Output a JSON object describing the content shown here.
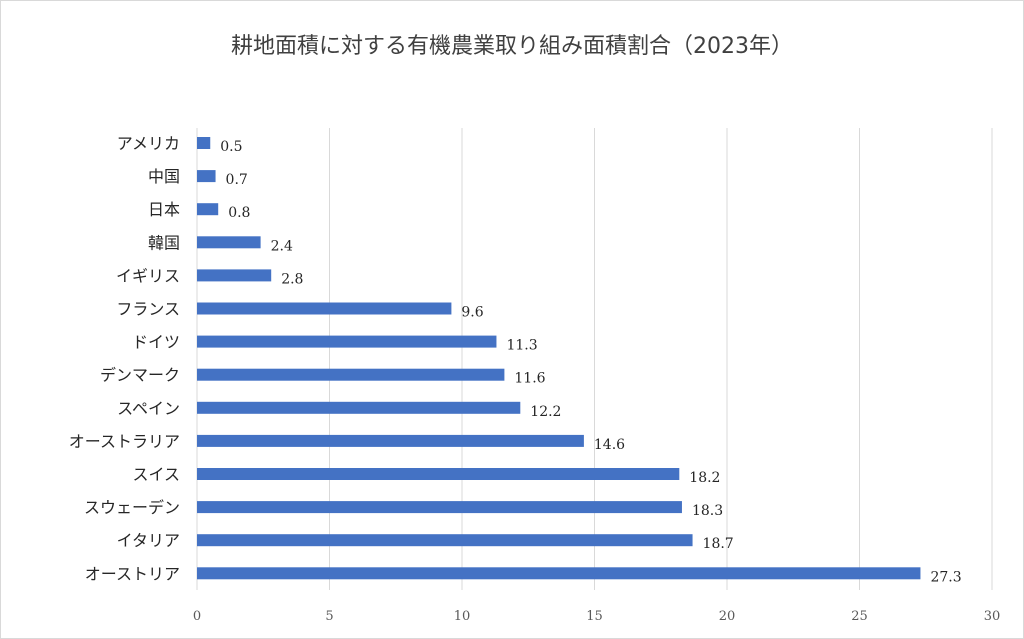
{
  "chart_data": {
    "type": "bar",
    "orientation": "horizontal",
    "title": "耕地面積に対する有機農業取り組み面積割合（2023年）",
    "categories": [
      "アメリカ",
      "中国",
      "日本",
      "韓国",
      "イギリス",
      "フランス",
      "ドイツ",
      "デンマーク",
      "スペイン",
      "オーストラリア",
      "スイス",
      "スウェーデン",
      "イタリア",
      "オーストリア"
    ],
    "values": [
      0.5,
      0.7,
      0.8,
      2.4,
      2.8,
      9.6,
      11.3,
      11.6,
      12.2,
      14.6,
      18.2,
      18.3,
      18.7,
      27.3
    ],
    "xlim": [
      0,
      30
    ],
    "xticks": [
      "0",
      "5",
      "10",
      "15",
      "20",
      "25",
      "30"
    ],
    "bar_color": "#4472c4",
    "grid": "vertical",
    "data_labels": true
  }
}
